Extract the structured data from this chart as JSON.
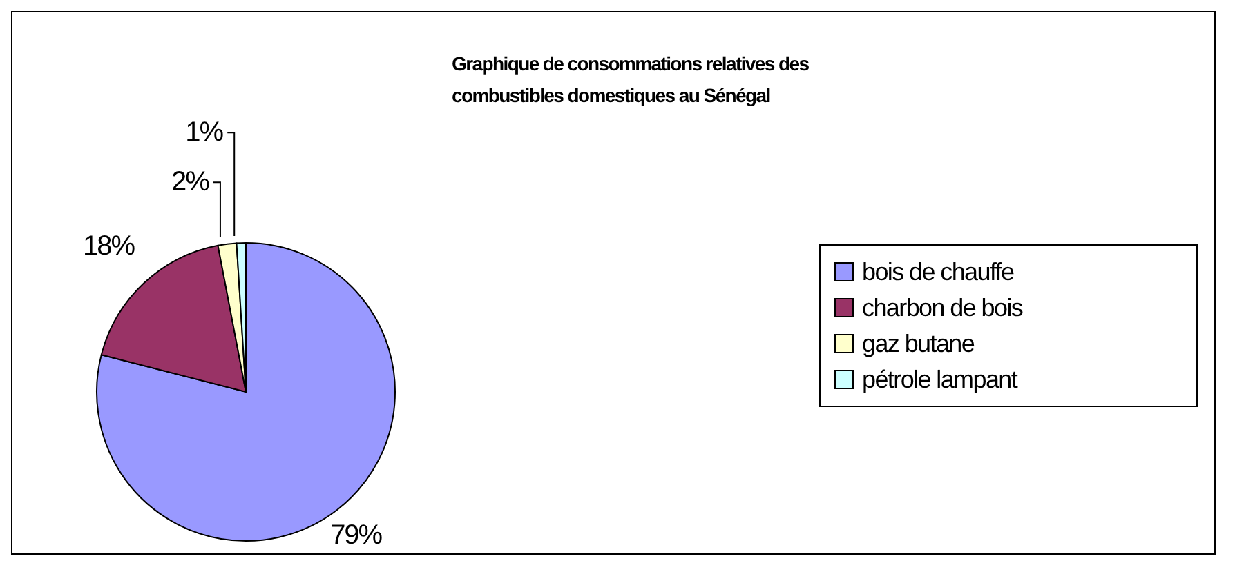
{
  "chart_data": {
    "type": "pie",
    "title": "Graphique de consommations relatives des combustibles domestiques au Sénégal",
    "categories": [
      "bois de chauffe",
      "charbon de bois",
      "gaz butane",
      "pétrole lampant"
    ],
    "values": [
      79,
      18,
      2,
      1
    ],
    "colors": [
      "#9999ff",
      "#993366",
      "#ffffcc",
      "#ccffff"
    ],
    "value_labels": [
      "79%",
      "18%",
      "2%",
      "1%"
    ],
    "legend": "right"
  }
}
